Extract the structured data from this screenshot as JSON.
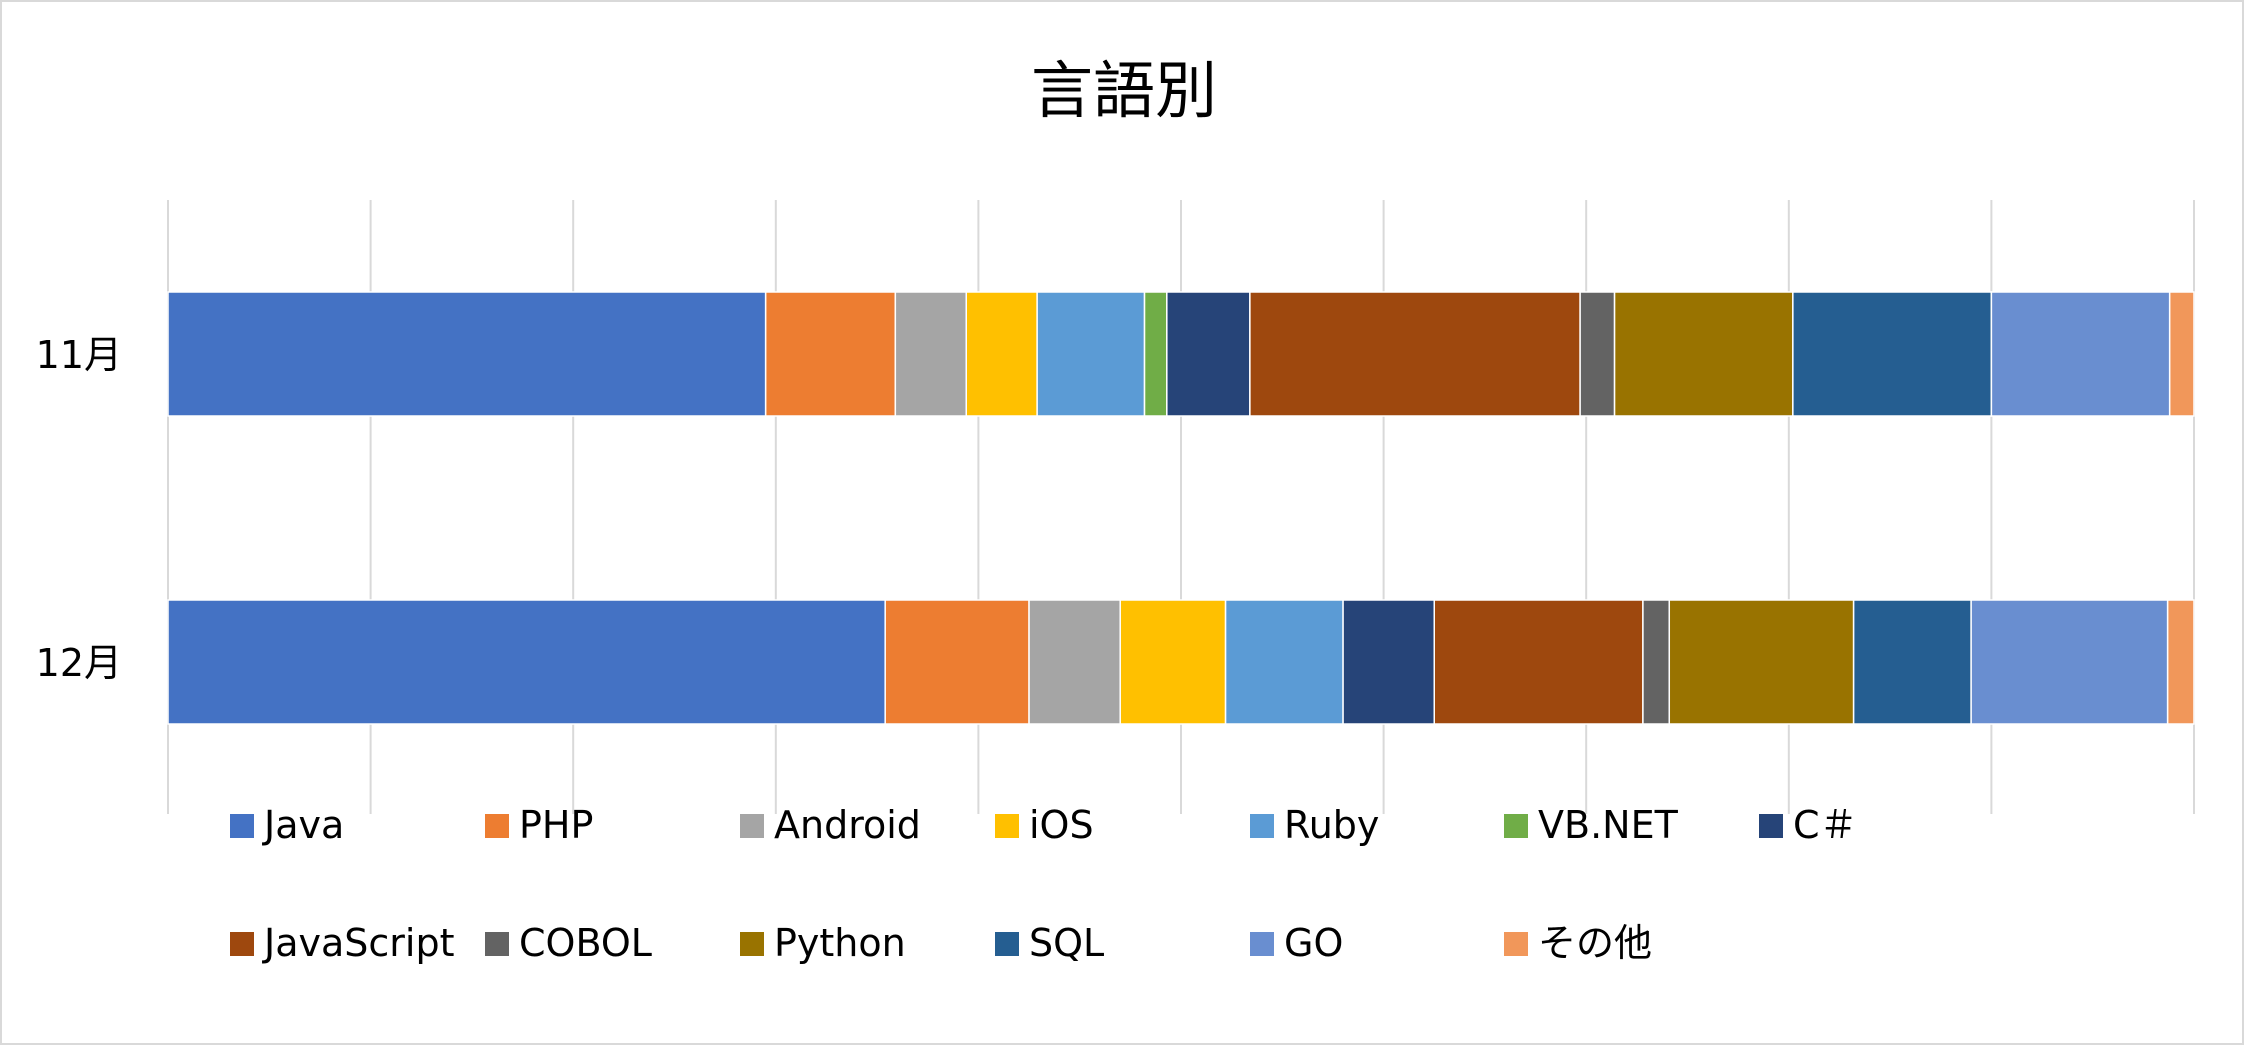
{
  "chart_data": {
    "type": "bar",
    "orientation": "horizontal",
    "stacking": "percent",
    "title": "言語別",
    "categories": [
      "11月",
      "12月"
    ],
    "xlim": [
      0,
      100
    ],
    "grid": true,
    "legend_position": "bottom",
    "series": [
      {
        "name": "Java",
        "color": "#4472C4",
        "values": [
          29.5,
          35.4
        ]
      },
      {
        "name": "PHP",
        "color": "#ED7D31",
        "values": [
          6.4,
          7.1
        ]
      },
      {
        "name": "Android",
        "color": "#A5A5A5",
        "values": [
          3.5,
          4.5
        ]
      },
      {
        "name": "iOS",
        "color": "#FFC000",
        "values": [
          3.5,
          5.2
        ]
      },
      {
        "name": "Ruby",
        "color": "#5B9BD5",
        "values": [
          5.3,
          5.8
        ]
      },
      {
        "name": "VB.NET",
        "color": "#70AD47",
        "values": [
          1.1,
          0.0
        ]
      },
      {
        "name": "C＃",
        "color": "#264478",
        "values": [
          4.1,
          4.5
        ]
      },
      {
        "name": "JavaScript",
        "color": "#9E480E",
        "values": [
          16.3,
          10.3
        ]
      },
      {
        "name": "COBOL",
        "color": "#636363",
        "values": [
          1.7,
          1.3
        ]
      },
      {
        "name": "Python",
        "color": "#997300",
        "values": [
          8.8,
          9.1
        ]
      },
      {
        "name": "SQL",
        "color": "#255E91",
        "values": [
          9.8,
          5.8
        ]
      },
      {
        "name": "GO",
        "color": "#698ED0",
        "values": [
          8.8,
          9.7
        ]
      },
      {
        "name": "その他",
        "color": "#F1975A",
        "values": [
          1.2,
          1.3
        ]
      }
    ]
  }
}
